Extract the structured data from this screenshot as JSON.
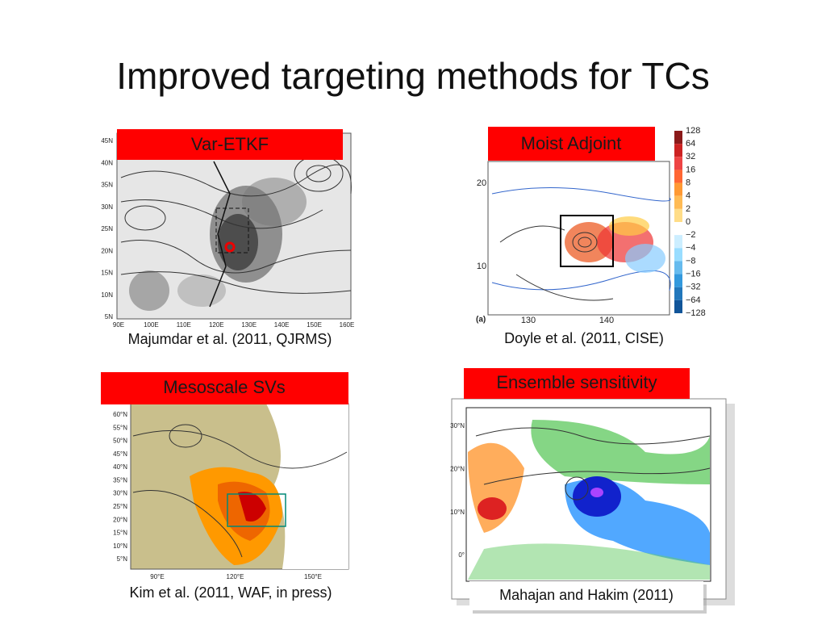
{
  "title": "Improved targeting methods for TCs",
  "panels": [
    {
      "heading": "Var-ETKF",
      "caption": "Majumdar et al. (2011, QJRMS)",
      "lat_labels": [
        "45N",
        "40N",
        "35N",
        "30N",
        "25N",
        "20N",
        "15N",
        "10N",
        "5N"
      ],
      "lon_labels": [
        "90E",
        "100E",
        "110E",
        "120E",
        "130E",
        "140E",
        "150E",
        "160E"
      ]
    },
    {
      "heading": "Moist Adjoint",
      "caption": "Doyle et al. (2011, CISE)",
      "colorbar_labels": [
        "128",
        "64",
        "32",
        "16",
        "8",
        "4",
        "2",
        "0",
        "−2",
        "−4",
        "−8",
        "−16",
        "−32",
        "−64",
        "−128"
      ],
      "lat_labels": [
        "20",
        "10"
      ],
      "lon_labels": [
        "130",
        "140"
      ],
      "panel_label": "(a)"
    },
    {
      "heading": "Mesoscale SVs",
      "caption": "Kim et al. (2011, WAF, in press)",
      "lat_labels": [
        "60°N",
        "55°N",
        "50°N",
        "45°N",
        "40°N",
        "35°N",
        "30°N",
        "25°N",
        "20°N",
        "15°N",
        "10°N",
        "5°N"
      ],
      "lon_labels": [
        "90°E",
        "120°E",
        "150°E"
      ]
    },
    {
      "heading": "Ensemble sensitivity",
      "caption": "Mahajan and Hakim (2011)",
      "lat_labels": [
        "30°N",
        "20°N",
        "10°N",
        "0°"
      ]
    }
  ]
}
